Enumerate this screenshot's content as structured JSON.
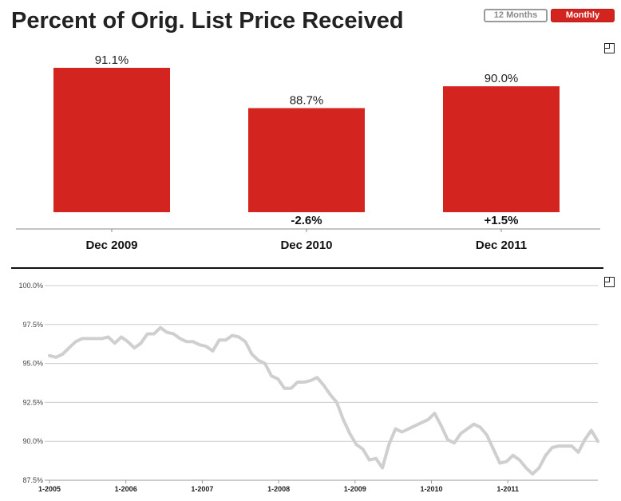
{
  "page": {
    "title": "Percent of Orig. List Price Received",
    "toggle": {
      "twelve_months_label": "12 Months",
      "monthly_label": "Monthly"
    },
    "accent_color": "#d32420",
    "line_color": "#cfcfcf",
    "icons": [
      "expand-icon",
      "expand-icon"
    ]
  },
  "chart_data": [
    {
      "type": "bar",
      "categories": [
        "Dec 2009",
        "Dec 2010",
        "Dec 2011"
      ],
      "values": [
        91.1,
        88.7,
        90.0
      ],
      "value_labels": [
        "91.1%",
        "88.7%",
        "90.0%"
      ],
      "change_labels": [
        "",
        "-2.6%",
        "+1.5%"
      ],
      "color": "#d32420",
      "ylim": [
        82.5,
        92
      ]
    },
    {
      "type": "line",
      "ylim": [
        87.5,
        100
      ],
      "ytick_labels": [
        "100.0%",
        "97.5%",
        "95.0%",
        "92.5%",
        "90.0%",
        "87.5%"
      ],
      "ytick_values": [
        100,
        97.5,
        95,
        92.5,
        90,
        87.5
      ],
      "xtick_labels": [
        "1-2005",
        "1-2006",
        "1-2007",
        "1-2008",
        "1-2009",
        "1-2010",
        "1-2011"
      ],
      "grid": true,
      "series": [
        {
          "values": [
            95.5,
            95.4,
            95.6,
            96.0,
            96.4,
            96.6,
            96.6,
            96.6,
            96.6,
            96.7,
            96.3,
            96.7,
            96.4,
            96.0,
            96.3,
            96.9,
            96.9,
            97.3,
            97.0,
            96.9,
            96.6,
            96.4,
            96.4,
            96.2,
            96.1,
            95.8,
            96.5,
            96.5,
            96.8,
            96.7,
            96.4,
            95.6,
            95.2,
            95.0,
            94.2,
            94.0,
            93.4,
            93.4,
            93.8,
            93.8,
            93.9,
            94.1,
            93.6,
            93.0,
            92.5,
            91.4,
            90.5,
            89.8,
            89.5,
            88.8,
            88.9,
            88.3,
            89.8,
            90.8,
            90.6,
            90.8,
            91.0,
            91.2,
            91.4,
            91.8,
            91.0,
            90.1,
            89.9,
            90.5,
            90.8,
            91.1,
            90.9,
            90.4,
            89.5,
            88.6,
            88.7,
            89.1,
            88.8,
            88.3,
            87.9,
            88.3,
            89.1,
            89.6,
            89.7,
            89.7,
            89.7,
            89.3,
            90.1,
            90.7,
            90.0
          ]
        }
      ]
    }
  ]
}
